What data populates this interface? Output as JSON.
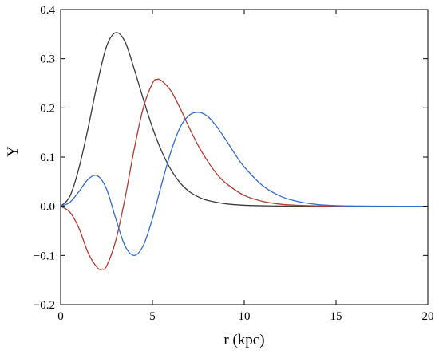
{
  "chart_data": {
    "type": "line",
    "title": "",
    "xlabel": "r (kpc)",
    "ylabel": "Y",
    "xlim": [
      0,
      20
    ],
    "ylim": [
      -0.2,
      0.4
    ],
    "xticks": [
      0,
      5,
      10,
      15,
      20
    ],
    "yticks": [
      -0.2,
      -0.1,
      0.0,
      0.1,
      0.2,
      0.3,
      0.4
    ],
    "xtick_labels": [
      "0",
      "5",
      "10",
      "15",
      "20"
    ],
    "ytick_labels": [
      "−0.2",
      "−0.1",
      "0.0",
      "0.1",
      "0.2",
      "0.3",
      "0.4"
    ],
    "grid": false,
    "legend": false,
    "series": [
      {
        "color": "#3a3a3a",
        "x": [
          0,
          0.5,
          1,
          1.5,
          2,
          2.5,
          3,
          3.5,
          4,
          4.5,
          5,
          5.5,
          6,
          6.5,
          7,
          7.5,
          8,
          9,
          10,
          11,
          12,
          13,
          14,
          15,
          17,
          20
        ],
        "y": [
          0,
          0.02,
          0.078,
          0.16,
          0.25,
          0.325,
          0.353,
          0.335,
          0.28,
          0.218,
          0.16,
          0.112,
          0.075,
          0.048,
          0.03,
          0.019,
          0.012,
          0.005,
          0.002,
          0.001,
          0.0004,
          0.0002,
          0.0001,
          0,
          0,
          0
        ]
      },
      {
        "color": "#b03a2e",
        "x": [
          0,
          0.5,
          1,
          1.5,
          2,
          2.25,
          2.5,
          3,
          3.5,
          4,
          4.5,
          5,
          5.25,
          5.5,
          6,
          6.5,
          7,
          7.5,
          8,
          8.5,
          9,
          10,
          11,
          12,
          13,
          14,
          15,
          17,
          20
        ],
        "y": [
          0,
          -0.012,
          -0.045,
          -0.095,
          -0.125,
          -0.128,
          -0.122,
          -0.07,
          0.015,
          0.115,
          0.2,
          0.25,
          0.258,
          0.255,
          0.235,
          0.2,
          0.16,
          0.123,
          0.092,
          0.066,
          0.047,
          0.022,
          0.01,
          0.004,
          0.0018,
          0.0008,
          0.0003,
          0,
          0
        ]
      },
      {
        "color": "#2f6bd0",
        "x": [
          0,
          0.5,
          1,
          1.5,
          2,
          2.5,
          3,
          3.5,
          4,
          4.5,
          5,
          5.5,
          6,
          6.5,
          7,
          7.5,
          8,
          8.5,
          9,
          9.5,
          10,
          11,
          12,
          13,
          14,
          15,
          16,
          17,
          20
        ],
        "y": [
          0,
          0.008,
          0.03,
          0.055,
          0.062,
          0.035,
          -0.025,
          -0.08,
          -0.1,
          -0.08,
          -0.025,
          0.045,
          0.11,
          0.16,
          0.185,
          0.191,
          0.183,
          0.162,
          0.135,
          0.106,
          0.08,
          0.042,
          0.02,
          0.009,
          0.0035,
          0.0013,
          0.0005,
          0.0002,
          0
        ]
      }
    ]
  }
}
